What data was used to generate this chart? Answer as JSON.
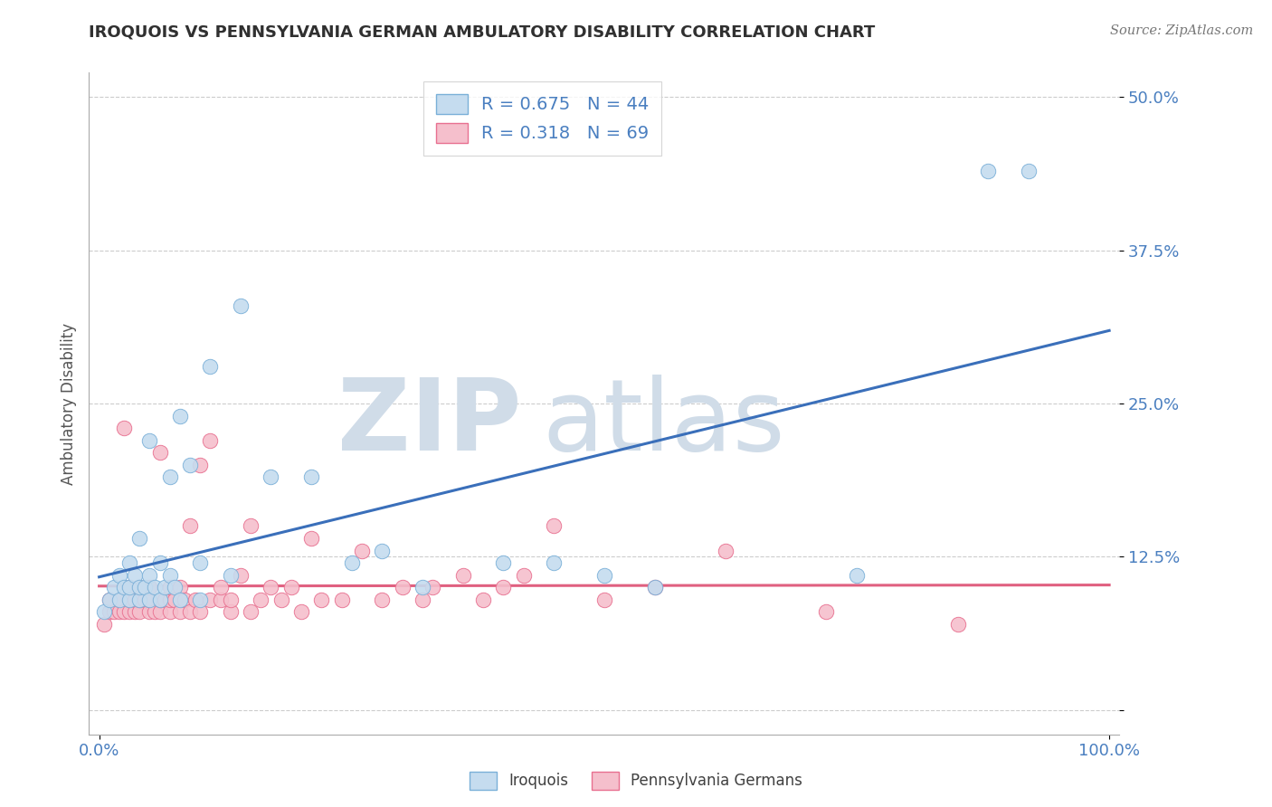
{
  "title": "IROQUOIS VS PENNSYLVANIA GERMAN AMBULATORY DISABILITY CORRELATION CHART",
  "source_text": "Source: ZipAtlas.com",
  "ylabel": "Ambulatory Disability",
  "legend_entries": [
    {
      "label": "Iroquois",
      "R": "0.675",
      "N": "44",
      "color": "#a8c4e0"
    },
    {
      "label": "Pennsylvania Germans",
      "R": "0.318",
      "N": "69",
      "color": "#f0a0b0"
    }
  ],
  "iroquois_edge_color": "#7ab0d8",
  "iroquois_face_color": "#c5dcef",
  "penn_edge_color": "#e87090",
  "penn_face_color": "#f5bfcc",
  "regression_blue": "#3a6fba",
  "regression_pink": "#e06080",
  "watermark_color": "#d0dce8",
  "title_color": "#303030",
  "axis_tick_color": "#4a7fc0",
  "grid_color": "#cccccc",
  "ylim": [
    -0.02,
    0.52
  ],
  "xlim": [
    -0.01,
    1.01
  ],
  "yticks": [
    0.0,
    0.125,
    0.25,
    0.375,
    0.5
  ],
  "ytick_labels": [
    "",
    "12.5%",
    "25.0%",
    "37.5%",
    "50.0%"
  ],
  "iroquois_x": [
    0.005,
    0.01,
    0.015,
    0.02,
    0.02,
    0.025,
    0.03,
    0.03,
    0.03,
    0.035,
    0.04,
    0.04,
    0.04,
    0.045,
    0.05,
    0.05,
    0.05,
    0.055,
    0.06,
    0.06,
    0.065,
    0.07,
    0.07,
    0.075,
    0.08,
    0.08,
    0.09,
    0.1,
    0.1,
    0.11,
    0.13,
    0.14,
    0.17,
    0.21,
    0.25,
    0.28,
    0.32,
    0.4,
    0.45,
    0.5,
    0.55,
    0.75,
    0.88,
    0.92
  ],
  "iroquois_y": [
    0.08,
    0.09,
    0.1,
    0.09,
    0.11,
    0.1,
    0.09,
    0.1,
    0.12,
    0.11,
    0.09,
    0.1,
    0.14,
    0.1,
    0.09,
    0.11,
    0.22,
    0.1,
    0.09,
    0.12,
    0.1,
    0.11,
    0.19,
    0.1,
    0.09,
    0.24,
    0.2,
    0.09,
    0.12,
    0.28,
    0.11,
    0.33,
    0.19,
    0.19,
    0.12,
    0.13,
    0.1,
    0.12,
    0.12,
    0.11,
    0.1,
    0.11,
    0.44,
    0.44
  ],
  "penn_x": [
    0.005,
    0.01,
    0.01,
    0.015,
    0.02,
    0.02,
    0.025,
    0.025,
    0.03,
    0.03,
    0.03,
    0.035,
    0.035,
    0.04,
    0.04,
    0.04,
    0.045,
    0.05,
    0.05,
    0.05,
    0.055,
    0.06,
    0.06,
    0.06,
    0.065,
    0.07,
    0.07,
    0.07,
    0.075,
    0.08,
    0.08,
    0.085,
    0.09,
    0.09,
    0.095,
    0.1,
    0.1,
    0.11,
    0.11,
    0.12,
    0.12,
    0.13,
    0.13,
    0.14,
    0.15,
    0.15,
    0.16,
    0.17,
    0.18,
    0.19,
    0.2,
    0.21,
    0.22,
    0.24,
    0.26,
    0.28,
    0.3,
    0.32,
    0.33,
    0.36,
    0.38,
    0.4,
    0.42,
    0.45,
    0.5,
    0.55,
    0.62,
    0.72,
    0.85
  ],
  "penn_y": [
    0.07,
    0.08,
    0.09,
    0.08,
    0.08,
    0.09,
    0.08,
    0.23,
    0.08,
    0.09,
    0.1,
    0.08,
    0.09,
    0.08,
    0.09,
    0.1,
    0.09,
    0.08,
    0.09,
    0.1,
    0.08,
    0.08,
    0.09,
    0.21,
    0.09,
    0.08,
    0.09,
    0.1,
    0.09,
    0.08,
    0.1,
    0.09,
    0.08,
    0.15,
    0.09,
    0.08,
    0.2,
    0.09,
    0.22,
    0.09,
    0.1,
    0.08,
    0.09,
    0.11,
    0.08,
    0.15,
    0.09,
    0.1,
    0.09,
    0.1,
    0.08,
    0.14,
    0.09,
    0.09,
    0.13,
    0.09,
    0.1,
    0.09,
    0.1,
    0.11,
    0.09,
    0.1,
    0.11,
    0.15,
    0.09,
    0.1,
    0.13,
    0.08,
    0.07
  ]
}
